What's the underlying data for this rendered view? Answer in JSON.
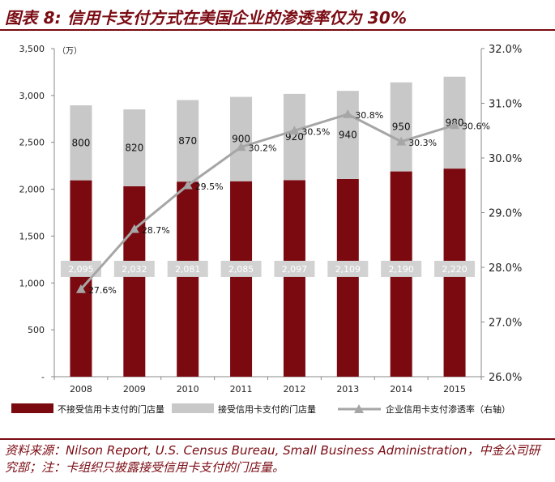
{
  "title": "图表 8: 信用卡支付方式在美国企业的渗透率仅为 30%",
  "source": "资料来源：Nilson Report, U.S. Census Bureau, Small Business Administration，中金公司研究部；注：卡组织只披露接受信用卡支付的门店量。",
  "colors": {
    "dark_bar": "#7b0a10",
    "light_bar": "#c8c8c8",
    "line": "#a6a6a6",
    "accent": "#7a0a12"
  },
  "chart_data": {
    "type": "bar",
    "stacked": true,
    "categories": [
      "2008",
      "2009",
      "2010",
      "2011",
      "2012",
      "2013",
      "2014",
      "2015"
    ],
    "series": [
      {
        "name": "不接受信用卡支付的门店量",
        "values": [
          2095,
          2032,
          2081,
          2085,
          2097,
          2109,
          2190,
          2220
        ],
        "labels": [
          "2,095",
          "2,032",
          "2,081",
          "2,085",
          "2,097",
          "2,109",
          "2,190",
          "2,220"
        ]
      },
      {
        "name": "接受信用卡支付的门店量",
        "values": [
          800,
          820,
          870,
          900,
          920,
          940,
          950,
          980
        ],
        "labels": [
          "800",
          "820",
          "870",
          "900",
          "920",
          "940",
          "950",
          "980"
        ]
      },
      {
        "name": "企业信用卡支付渗透率（右轴）",
        "type": "line",
        "axis": "right",
        "values": [
          27.6,
          28.7,
          29.5,
          30.2,
          30.5,
          30.8,
          30.3,
          30.6
        ],
        "labels": [
          "27.6%",
          "28.7%",
          "29.5%",
          "30.2%",
          "30.5%",
          "30.8%",
          "30.3%",
          "30.6%"
        ]
      }
    ],
    "y_left": {
      "unit": "（万）",
      "ylim": [
        0,
        3500
      ],
      "ticks": [
        0,
        500,
        1000,
        1500,
        2000,
        2500,
        3000,
        3500
      ],
      "tick_labels": [
        "-",
        "500",
        "1,000",
        "1,500",
        "2,000",
        "2,500",
        "3,000",
        "3,500"
      ]
    },
    "y_right": {
      "ylim": [
        26,
        32
      ],
      "ticks": [
        26,
        27,
        28,
        29,
        30,
        31,
        32
      ],
      "tick_labels": [
        "26.0%",
        "27.0%",
        "28.0%",
        "29.0%",
        "30.0%",
        "31.0%",
        "32.0%"
      ]
    },
    "grid": false,
    "legend_position": "bottom"
  }
}
